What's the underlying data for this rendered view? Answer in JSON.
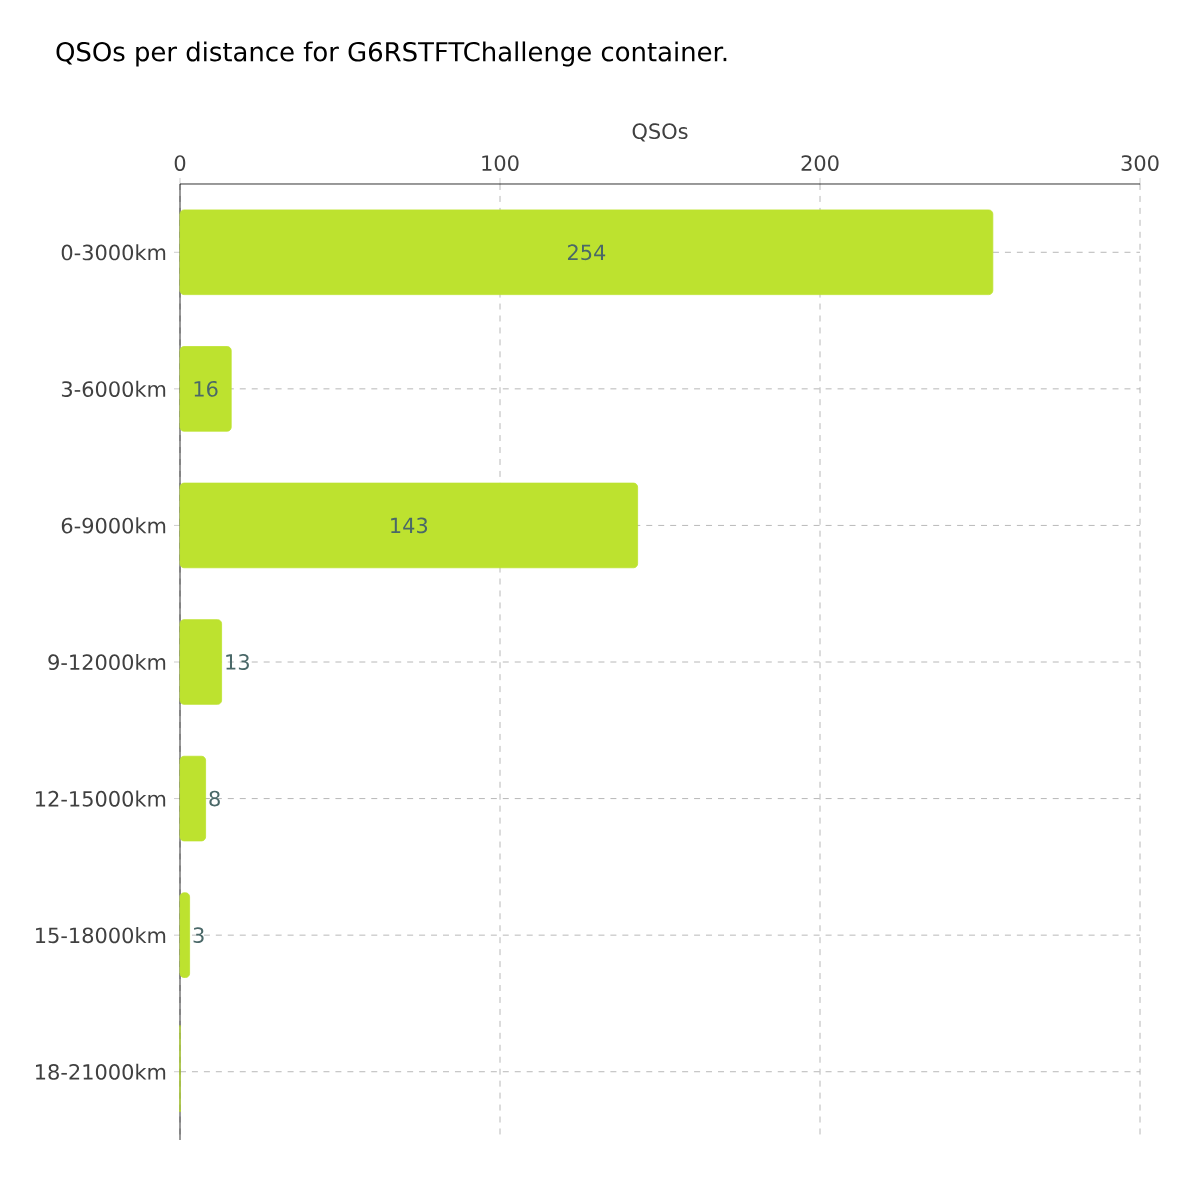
{
  "chart_data": {
    "type": "bar",
    "orientation": "horizontal",
    "title": "QSOs per distance for G6RSTFTChallenge container.",
    "xlabel": "QSOs",
    "categories": [
      "0-3000km",
      "3-6000km",
      "6-9000km",
      "9-12000km",
      "12-15000km",
      "15-18000km",
      "18-21000km"
    ],
    "values": [
      254,
      16,
      143,
      13,
      8,
      3,
      0
    ],
    "value_labels": [
      "254",
      "16",
      "143",
      "13",
      "8",
      "3",
      null
    ],
    "color": "#bde22f",
    "xlim": [
      0,
      300
    ],
    "xticks": [
      0,
      100,
      200,
      300
    ],
    "grid": true
  }
}
